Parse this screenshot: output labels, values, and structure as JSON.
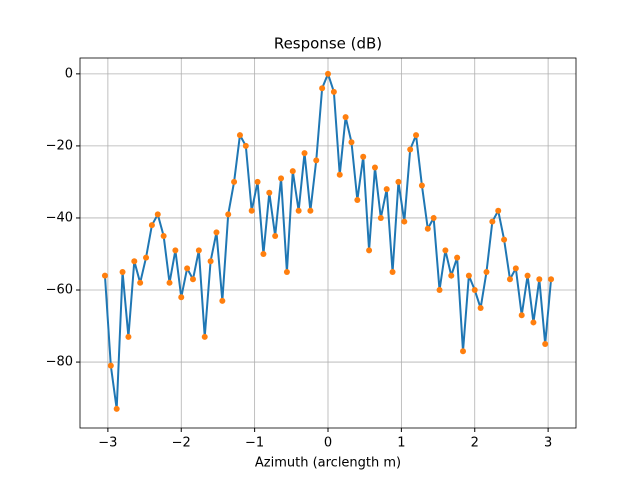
{
  "chart_data": {
    "type": "line",
    "title": "Response (dB)",
    "xlabel": "Azimuth (arclength m)",
    "x": [
      -3.04,
      -2.96,
      -2.88,
      -2.8,
      -2.72,
      -2.64,
      -2.56,
      -2.48,
      -2.4,
      -2.32,
      -2.24,
      -2.16,
      -2.08,
      -2.0,
      -1.92,
      -1.84,
      -1.76,
      -1.68,
      -1.6,
      -1.52,
      -1.44,
      -1.36,
      -1.28,
      -1.2,
      -1.12,
      -1.04,
      -0.96,
      -0.88,
      -0.8,
      -0.72,
      -0.64,
      -0.56,
      -0.48,
      -0.4,
      -0.32,
      -0.24,
      -0.16,
      -0.08,
      0.0,
      0.08,
      0.16,
      0.24,
      0.32,
      0.4,
      0.48,
      0.56,
      0.64,
      0.72,
      0.8,
      0.88,
      0.96,
      1.04,
      1.12,
      1.2,
      1.28,
      1.36,
      1.44,
      1.52,
      1.6,
      1.68,
      1.76,
      1.84,
      1.92,
      2.0,
      2.08,
      2.16,
      2.24,
      2.32,
      2.4,
      2.48,
      2.56,
      2.64,
      2.72,
      2.8,
      2.88,
      2.96,
      3.04
    ],
    "series": [
      {
        "color": "#1f77b4",
        "marker_color": "#ff7f0e",
        "values": [
          -56,
          -81,
          -93,
          -55,
          -73,
          -52,
          -58,
          -51,
          -42,
          -39,
          -45,
          -58,
          -49,
          -62,
          -54,
          -57,
          -49,
          -73,
          -52,
          -44,
          -63,
          -39,
          -30,
          -17,
          -20,
          -38,
          -30,
          -50,
          -33,
          -45,
          -29,
          -55,
          -27,
          -38,
          -22,
          -38,
          -24,
          -4,
          0,
          -5,
          -28,
          -12,
          -19,
          -35,
          -23,
          -49,
          -26,
          -40,
          -32,
          -55,
          -30,
          -41,
          -21,
          -17,
          -31,
          -43,
          -40,
          -60,
          -49,
          -56,
          -51,
          -77,
          -56,
          -60,
          -65,
          -55,
          -41,
          -38,
          -46,
          -57,
          -54,
          -67,
          -56,
          -69,
          -57,
          -75,
          -57
        ]
      }
    ],
    "xlim": [
      -3.38,
      3.38
    ],
    "ylim": [
      -98.3,
      4.4
    ],
    "xticks": [
      {
        "value": -3,
        "label": "−3"
      },
      {
        "value": -2,
        "label": "−2"
      },
      {
        "value": -1,
        "label": "−1"
      },
      0,
      1,
      2,
      3
    ],
    "yticks": [
      0,
      {
        "value": -20,
        "label": "−20"
      },
      {
        "value": -40,
        "label": "−40"
      },
      {
        "value": -60,
        "label": "−60"
      },
      {
        "value": -80,
        "label": "−80"
      }
    ],
    "grid": true
  }
}
